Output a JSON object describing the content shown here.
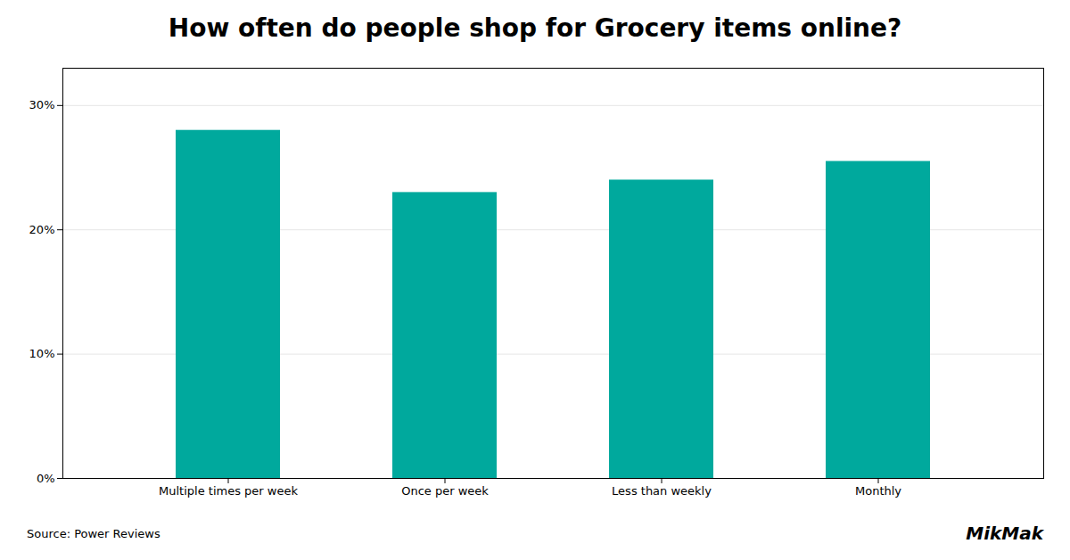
{
  "chart_data": {
    "type": "bar",
    "title": "How often do people shop for Grocery items online?",
    "categories": [
      "Multiple times per week",
      "Once per week",
      "Less than weekly",
      "Monthly"
    ],
    "values": [
      28,
      23,
      24,
      25.5
    ],
    "color": "#00A99D",
    "ylim": [
      0,
      33
    ],
    "yticks": [
      {
        "value": 0,
        "label": "0%"
      },
      {
        "value": 10,
        "label": "10%"
      },
      {
        "value": 20,
        "label": "20%"
      },
      {
        "value": 30,
        "label": "30%"
      }
    ],
    "grid": true,
    "annotations": [
      "Source: Power Reviews",
      "MikMak"
    ]
  }
}
